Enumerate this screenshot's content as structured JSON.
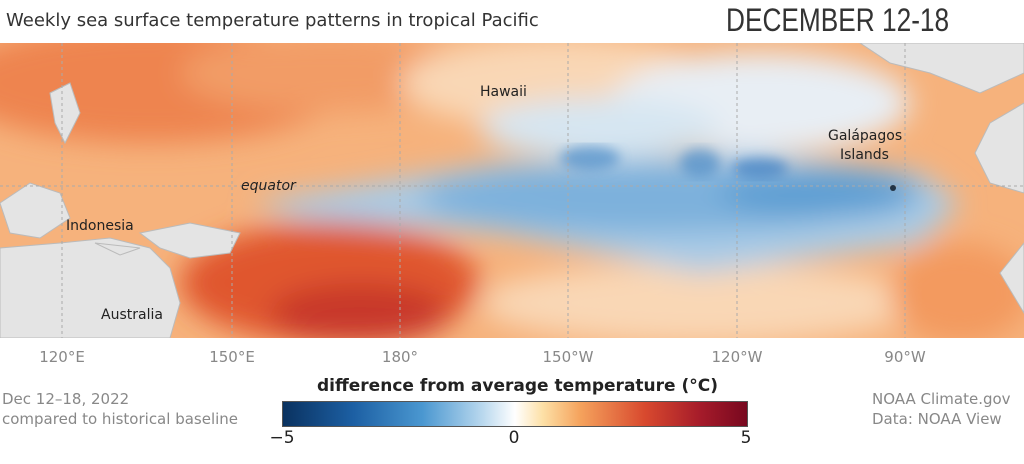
{
  "title": "Weekly sea surface temperature patterns in tropical Pacific",
  "date_title": "DECEMBER 12-18",
  "map_labels": {
    "hawaii": "Hawaii",
    "galapagos_1": "Galápagos",
    "galapagos_2": "Islands",
    "equator": "equator",
    "indonesia": "Indonesia",
    "australia": "Australia"
  },
  "longitude_ticks": [
    "120°E",
    "150°E",
    "180°",
    "150°W",
    "120°W",
    "90°W"
  ],
  "footer_left": {
    "line1": "Dec 12–18, 2022",
    "line2": "compared to historical baseline"
  },
  "footer_right": {
    "line1": "NOAA Climate.gov",
    "line2": "Data: NOAA View"
  },
  "legend": {
    "title": "difference from average temperature (°C)",
    "min": "−5",
    "mid": "0",
    "max": "5",
    "colors": [
      "#0a3260",
      "#4a97d0",
      "#ffffff",
      "#f5a35d",
      "#78081f"
    ]
  }
}
